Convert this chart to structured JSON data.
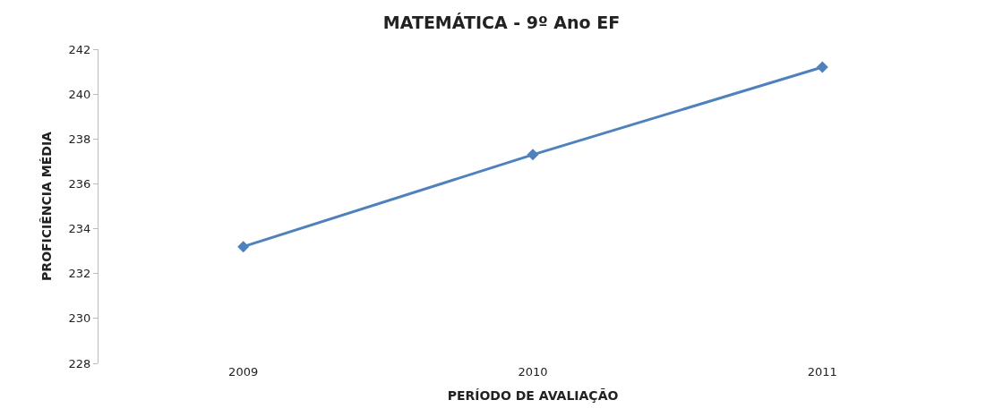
{
  "chart_data": {
    "type": "line",
    "title": "MATEMÁTICA - 9º Ano EF",
    "xlabel": "PERÍODO DE AVALIAÇÃO",
    "ylabel": "PROFICIÊNCIA MÉDIA",
    "categories": [
      "2009",
      "2010",
      "2011"
    ],
    "series": [
      {
        "color": "#4f81bd",
        "values": [
          233.2,
          237.3,
          241.2
        ]
      }
    ],
    "ylim": [
      228,
      242
    ],
    "yticks": [
      228,
      230,
      232,
      234,
      236,
      238,
      240,
      242
    ],
    "marker": "diamond"
  }
}
